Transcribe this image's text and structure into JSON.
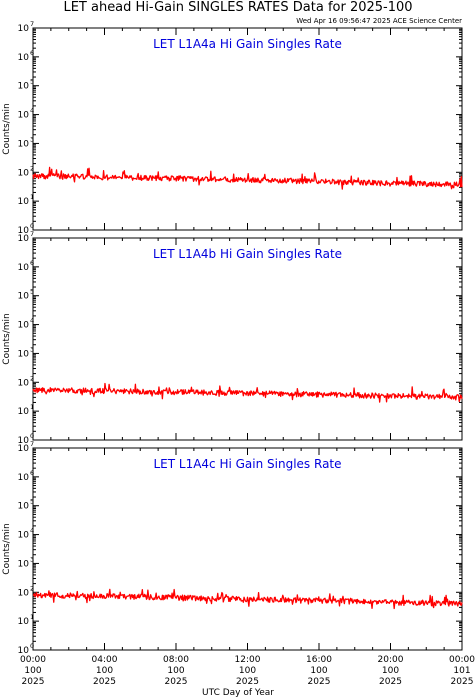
{
  "title": "LET ahead Hi-Gain SINGLES RATES Data for 2025-100",
  "timestamp": "Wed Apr 16 09:56:47 2025 ACE Science Center",
  "x_axis_label": "UTC Day of Year",
  "panel_title_color": "#0000dd",
  "series_color": "#ff0000",
  "x_ticks": [
    {
      "hours": 0,
      "time": "00:00",
      "day": "100",
      "year": "2025"
    },
    {
      "hours": 4,
      "time": "04:00",
      "day": "100",
      "year": "2025"
    },
    {
      "hours": 8,
      "time": "08:00",
      "day": "100",
      "year": "2025"
    },
    {
      "hours": 12,
      "time": "12:00",
      "day": "100",
      "year": "2025"
    },
    {
      "hours": 16,
      "time": "16:00",
      "day": "100",
      "year": "2025"
    },
    {
      "hours": 20,
      "time": "20:00",
      "day": "100",
      "year": "2025"
    },
    {
      "hours": 24,
      "time": "00:00",
      "day": "101",
      "year": "2025"
    }
  ],
  "y_tick_exponents": [
    0,
    1,
    2,
    3,
    4,
    5,
    6,
    7
  ],
  "chart_data": [
    {
      "type": "line",
      "title": "LET L1A4a Hi Gain Singles Rate",
      "ylabel": "Counts/min",
      "yscale": "log",
      "ylim": [
        1,
        10000000
      ],
      "xlim_hours": [
        0,
        24
      ],
      "series": [
        {
          "values_hours": [
            0,
            2,
            4,
            6,
            8,
            10,
            12,
            14,
            16,
            18,
            20,
            22,
            24
          ],
          "values": [
            75,
            72,
            68,
            65,
            62,
            58,
            55,
            52,
            48,
            45,
            42,
            40,
            38
          ]
        }
      ]
    },
    {
      "type": "line",
      "title": "LET L1A4b Hi Gain Singles Rate",
      "ylabel": "Counts/min",
      "yscale": "log",
      "ylim": [
        1,
        10000000
      ],
      "xlim_hours": [
        0,
        24
      ],
      "series": [
        {
          "values_hours": [
            0,
            2,
            4,
            6,
            8,
            10,
            12,
            14,
            16,
            18,
            20,
            22,
            24
          ],
          "values": [
            55,
            53,
            50,
            48,
            46,
            44,
            42,
            40,
            38,
            36,
            34,
            32,
            30
          ]
        }
      ]
    },
    {
      "type": "line",
      "title": "LET L1A4c Hi Gain Singles Rate",
      "ylabel": "Counts/min",
      "yscale": "log",
      "ylim": [
        1,
        10000000
      ],
      "xlim_hours": [
        0,
        24
      ],
      "series": [
        {
          "values_hours": [
            0,
            2,
            4,
            6,
            8,
            10,
            12,
            14,
            16,
            18,
            20,
            22,
            24
          ],
          "values": [
            80,
            78,
            74,
            70,
            66,
            62,
            58,
            55,
            52,
            48,
            45,
            42,
            40
          ]
        }
      ]
    }
  ]
}
